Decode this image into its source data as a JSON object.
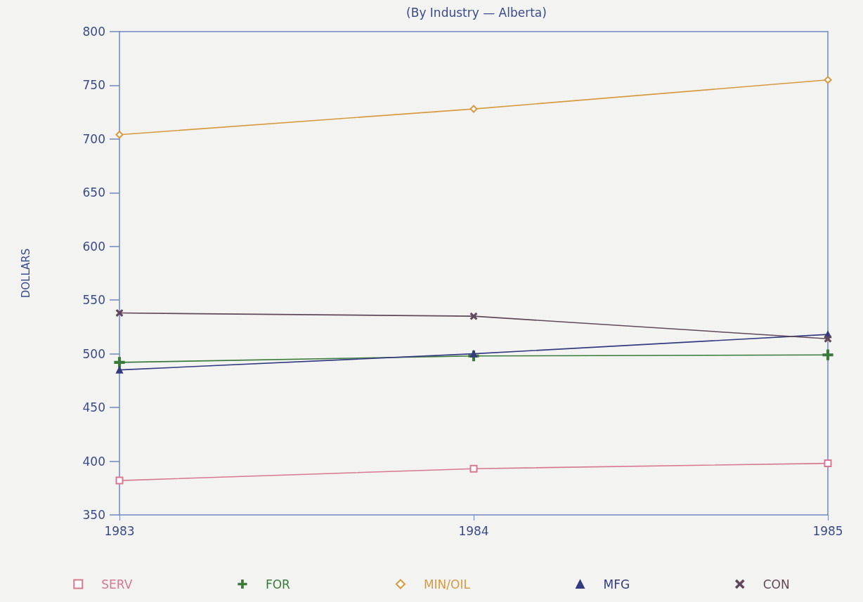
{
  "chart_data": {
    "type": "line",
    "subtitle": "(By Industry — Alberta)",
    "ylabel": "DOLLARS",
    "categories": [
      "1983",
      "1984",
      "1985"
    ],
    "series": [
      {
        "name": "SERV",
        "color": "#d87890",
        "marker": "square",
        "values": [
          382,
          393,
          398
        ]
      },
      {
        "name": "FOR",
        "color": "#3a7a3a",
        "marker": "cross",
        "values": [
          492,
          498,
          499
        ]
      },
      {
        "name": "MIN/OIL",
        "color": "#d89a40",
        "marker": "diamond",
        "values": [
          704,
          728,
          755
        ]
      },
      {
        "name": "MFG",
        "color": "#343a80",
        "marker": "triangle",
        "values": [
          485,
          500,
          518
        ]
      },
      {
        "name": "CON",
        "color": "#604858",
        "marker": "x",
        "values": [
          538,
          535,
          514
        ]
      }
    ],
    "ylim": [
      350,
      800
    ],
    "yticks": [
      350,
      400,
      450,
      500,
      550,
      600,
      650,
      700,
      750,
      800
    ],
    "grid": false,
    "legend": "bottom"
  }
}
